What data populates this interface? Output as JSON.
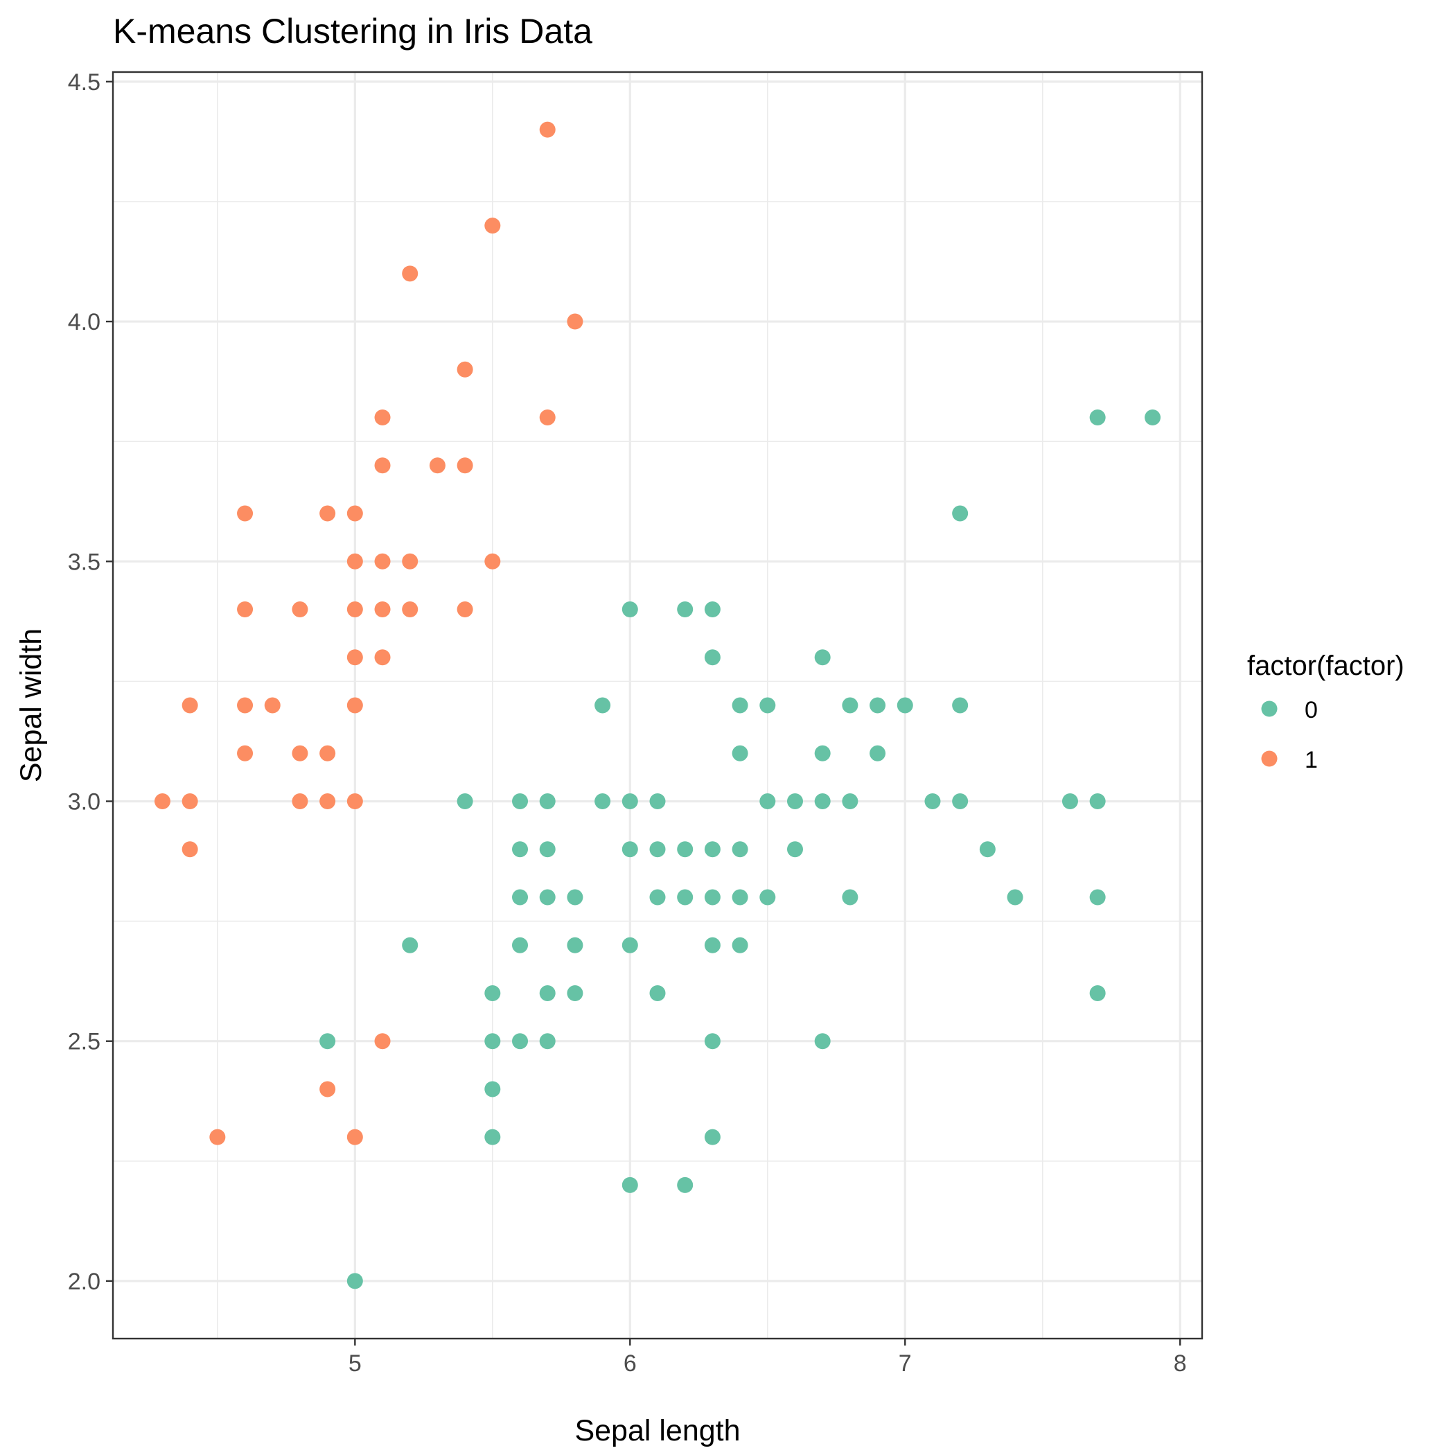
{
  "chart_data": {
    "type": "scatter",
    "title": "K-means Clustering in Iris Data",
    "xlabel": "Sepal length",
    "ylabel": "Sepal width",
    "xlim": [
      4.12,
      8.08
    ],
    "ylim": [
      1.88,
      4.52
    ],
    "x_ticks": [
      5,
      6,
      7,
      8
    ],
    "y_ticks": [
      2.0,
      2.5,
      3.0,
      3.5,
      4.0,
      4.5
    ],
    "x_tick_labels": [
      "5",
      "6",
      "7",
      "8"
    ],
    "y_tick_labels": [
      "2.0",
      "2.5",
      "3.0",
      "3.5",
      "4.0",
      "4.5"
    ],
    "grid": true,
    "legend": {
      "title": "factor(factor)",
      "position": "right"
    },
    "series": [
      {
        "name": "0",
        "color": "#66c2a5",
        "points": [
          [
            7.7,
            3.8
          ],
          [
            7.9,
            3.8
          ],
          [
            7.2,
            3.6
          ],
          [
            6.0,
            3.4
          ],
          [
            6.2,
            3.4
          ],
          [
            6.3,
            3.4
          ],
          [
            6.3,
            3.3
          ],
          [
            6.7,
            3.3
          ],
          [
            5.9,
            3.2
          ],
          [
            6.4,
            3.2
          ],
          [
            6.5,
            3.2
          ],
          [
            6.8,
            3.2
          ],
          [
            6.9,
            3.2
          ],
          [
            7.0,
            3.2
          ],
          [
            7.2,
            3.2
          ],
          [
            6.4,
            3.1
          ],
          [
            6.7,
            3.1
          ],
          [
            6.9,
            3.1
          ],
          [
            5.4,
            3.0
          ],
          [
            5.6,
            3.0
          ],
          [
            5.7,
            3.0
          ],
          [
            5.9,
            3.0
          ],
          [
            6.0,
            3.0
          ],
          [
            6.1,
            3.0
          ],
          [
            6.5,
            3.0
          ],
          [
            6.6,
            3.0
          ],
          [
            6.7,
            3.0
          ],
          [
            6.8,
            3.0
          ],
          [
            7.1,
            3.0
          ],
          [
            7.2,
            3.0
          ],
          [
            7.6,
            3.0
          ],
          [
            7.7,
            3.0
          ],
          [
            5.6,
            2.9
          ],
          [
            5.7,
            2.9
          ],
          [
            6.0,
            2.9
          ],
          [
            6.1,
            2.9
          ],
          [
            6.2,
            2.9
          ],
          [
            6.3,
            2.9
          ],
          [
            6.4,
            2.9
          ],
          [
            6.6,
            2.9
          ],
          [
            7.3,
            2.9
          ],
          [
            5.6,
            2.8
          ],
          [
            5.7,
            2.8
          ],
          [
            5.8,
            2.8
          ],
          [
            6.1,
            2.8
          ],
          [
            6.2,
            2.8
          ],
          [
            6.3,
            2.8
          ],
          [
            6.4,
            2.8
          ],
          [
            6.5,
            2.8
          ],
          [
            6.8,
            2.8
          ],
          [
            7.4,
            2.8
          ],
          [
            7.7,
            2.8
          ],
          [
            5.2,
            2.7
          ],
          [
            5.6,
            2.7
          ],
          [
            5.8,
            2.7
          ],
          [
            6.0,
            2.7
          ],
          [
            6.3,
            2.7
          ],
          [
            6.4,
            2.7
          ],
          [
            5.5,
            2.6
          ],
          [
            5.7,
            2.6
          ],
          [
            5.8,
            2.6
          ],
          [
            6.1,
            2.6
          ],
          [
            7.7,
            2.6
          ],
          [
            4.9,
            2.5
          ],
          [
            5.5,
            2.5
          ],
          [
            5.6,
            2.5
          ],
          [
            5.7,
            2.5
          ],
          [
            6.3,
            2.5
          ],
          [
            6.7,
            2.5
          ],
          [
            5.5,
            2.4
          ],
          [
            5.5,
            2.3
          ],
          [
            6.3,
            2.3
          ],
          [
            6.0,
            2.2
          ],
          [
            6.2,
            2.2
          ],
          [
            5.0,
            2.0
          ]
        ]
      },
      {
        "name": "1",
        "color": "#fc8d62",
        "points": [
          [
            5.7,
            4.4
          ],
          [
            5.5,
            4.2
          ],
          [
            5.2,
            4.1
          ],
          [
            5.8,
            4.0
          ],
          [
            5.4,
            3.9
          ],
          [
            5.1,
            3.8
          ],
          [
            5.7,
            3.8
          ],
          [
            5.1,
            3.7
          ],
          [
            5.3,
            3.7
          ],
          [
            5.4,
            3.7
          ],
          [
            4.6,
            3.6
          ],
          [
            4.9,
            3.6
          ],
          [
            5.0,
            3.6
          ],
          [
            5.0,
            3.5
          ],
          [
            5.1,
            3.5
          ],
          [
            5.2,
            3.5
          ],
          [
            5.5,
            3.5
          ],
          [
            4.6,
            3.4
          ],
          [
            4.8,
            3.4
          ],
          [
            5.0,
            3.4
          ],
          [
            5.1,
            3.4
          ],
          [
            5.2,
            3.4
          ],
          [
            5.4,
            3.4
          ],
          [
            5.0,
            3.3
          ],
          [
            5.1,
            3.3
          ],
          [
            4.4,
            3.2
          ],
          [
            4.6,
            3.2
          ],
          [
            4.7,
            3.2
          ],
          [
            5.0,
            3.2
          ],
          [
            4.6,
            3.1
          ],
          [
            4.8,
            3.1
          ],
          [
            4.9,
            3.1
          ],
          [
            4.3,
            3.0
          ],
          [
            4.4,
            3.0
          ],
          [
            4.8,
            3.0
          ],
          [
            4.9,
            3.0
          ],
          [
            5.0,
            3.0
          ],
          [
            4.4,
            2.9
          ],
          [
            5.1,
            2.5
          ],
          [
            4.9,
            2.4
          ],
          [
            4.5,
            2.3
          ],
          [
            5.0,
            2.3
          ]
        ]
      }
    ]
  }
}
